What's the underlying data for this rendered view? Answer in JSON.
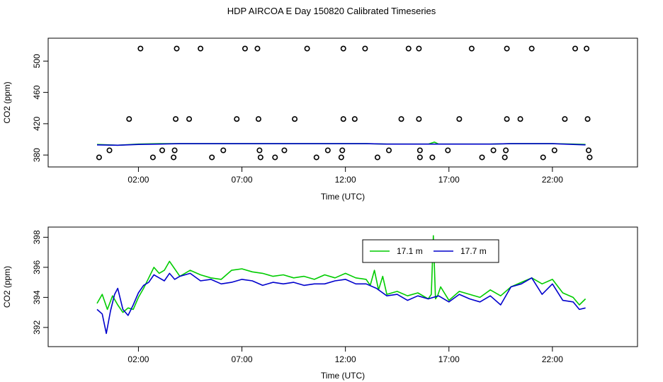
{
  "title": "HDP AIRCOA E  Day 150820  Calibrated Timeseries",
  "colors": {
    "green": "#00cc00",
    "blue": "#0000cc",
    "axis": "#000000"
  },
  "chart_data": [
    {
      "type": "scatter",
      "xlabel": "Time (UTC)",
      "ylabel": "CO2 (ppm)",
      "xlim": [
        -1.95,
        25.7
      ],
      "ylim": [
        372,
        522
      ],
      "x_ticks": [
        2,
        7,
        12,
        17,
        22
      ],
      "x_tick_labels": [
        "02:00",
        "07:00",
        "12:00",
        "17:00",
        "22:00"
      ],
      "y_ticks": [
        380,
        420,
        460,
        500
      ],
      "y_tick_labels": [
        "380",
        "420",
        "460",
        "500"
      ],
      "series": [
        {
          "marker": "open-circle",
          "color": "#000000",
          "points": [
            [
              2.1,
              516
            ],
            [
              3.85,
              516
            ],
            [
              5,
              516
            ],
            [
              7.15,
              516
            ],
            [
              7.75,
              516
            ],
            [
              10.15,
              516
            ],
            [
              11.9,
              516
            ],
            [
              12.95,
              516
            ],
            [
              15.05,
              516
            ],
            [
              15.55,
              516
            ],
            [
              18.1,
              516
            ],
            [
              19.8,
              516
            ],
            [
              21,
              516
            ],
            [
              23.1,
              516
            ],
            [
              23.65,
              516
            ],
            [
              1.55,
              426
            ],
            [
              3.8,
              426
            ],
            [
              4.45,
              426
            ],
            [
              6.75,
              426
            ],
            [
              7.8,
              426
            ],
            [
              9.55,
              426
            ],
            [
              11.9,
              426
            ],
            [
              12.45,
              426
            ],
            [
              14.7,
              426
            ],
            [
              15.55,
              426
            ],
            [
              17.5,
              426
            ],
            [
              19.8,
              426
            ],
            [
              20.45,
              426
            ],
            [
              22.6,
              426
            ],
            [
              23.7,
              426
            ],
            [
              0.1,
              377
            ],
            [
              0.6,
              386
            ],
            [
              2.7,
              377
            ],
            [
              3.15,
              386
            ],
            [
              3.7,
              377
            ],
            [
              3.75,
              386
            ],
            [
              5.55,
              377
            ],
            [
              6.1,
              386
            ],
            [
              7.85,
              386
            ],
            [
              7.9,
              377
            ],
            [
              8.6,
              377
            ],
            [
              9.05,
              386
            ],
            [
              10.6,
              377
            ],
            [
              11.15,
              386
            ],
            [
              11.8,
              377
            ],
            [
              11.85,
              386
            ],
            [
              13.55,
              377
            ],
            [
              14.1,
              386
            ],
            [
              15.6,
              377
            ],
            [
              15.6,
              386
            ],
            [
              16.2,
              377
            ],
            [
              16.95,
              386
            ],
            [
              18.6,
              377
            ],
            [
              19.15,
              386
            ],
            [
              19.7,
              377
            ],
            [
              19.75,
              386
            ],
            [
              21.55,
              377
            ],
            [
              22.1,
              386
            ],
            [
              23.8,
              377
            ],
            [
              23.75,
              386
            ]
          ]
        },
        {
          "marker": "line",
          "color": "#00cc00",
          "x": [
            0,
            1,
            2,
            3,
            4,
            5,
            6,
            7,
            8,
            9,
            10,
            11,
            12,
            13,
            14,
            15,
            16,
            16.3,
            16.5,
            17,
            18,
            19,
            20,
            21,
            22,
            23,
            23.6
          ],
          "y": [
            393.5,
            392.5,
            394,
            394.5,
            394.5,
            394.5,
            394.5,
            394.5,
            394.5,
            394.5,
            394.5,
            394.5,
            394.5,
            394.5,
            394,
            394,
            394,
            396.5,
            394,
            394,
            394,
            394,
            394.5,
            394.5,
            394.5,
            394,
            393.5
          ]
        },
        {
          "marker": "line",
          "color": "#0000cc",
          "x": [
            0,
            1,
            2,
            3,
            4,
            5,
            6,
            7,
            8,
            9,
            10,
            11,
            12,
            13,
            14,
            15,
            16,
            17,
            18,
            19,
            20,
            21,
            22,
            23,
            23.6
          ],
          "y": [
            393,
            392.5,
            393.5,
            394,
            394.5,
            394.5,
            394.5,
            394.5,
            394.5,
            394.5,
            394.5,
            394.5,
            394.5,
            394.5,
            394,
            394,
            394,
            394,
            394,
            394,
            394.5,
            394.5,
            394.5,
            393.5,
            393
          ]
        }
      ]
    },
    {
      "type": "line",
      "xlabel": "Time (UTC)",
      "ylabel": "CO2 (ppm)",
      "xlim": [
        -1.95,
        25.7
      ],
      "ylim": [
        391.1,
        398.3
      ],
      "x_ticks": [
        2,
        7,
        12,
        17,
        22
      ],
      "x_tick_labels": [
        "02:00",
        "07:00",
        "12:00",
        "17:00",
        "22:00"
      ],
      "y_ticks": [
        392,
        394,
        396,
        398
      ],
      "y_tick_labels": [
        "392",
        "394",
        "396",
        "398"
      ],
      "legend": {
        "position": "top-right",
        "entries": [
          "17.1 m",
          "17.7 m"
        ]
      },
      "series": [
        {
          "name": "17.1 m",
          "color": "#00cc00",
          "x": [
            0,
            0.25,
            0.5,
            0.75,
            1,
            1.25,
            1.5,
            1.75,
            2,
            2.25,
            2.5,
            2.75,
            3,
            3.25,
            3.5,
            3.75,
            4,
            4.5,
            5,
            5.5,
            6,
            6.5,
            7,
            7.5,
            8,
            8.5,
            9,
            9.5,
            10,
            10.5,
            11,
            11.5,
            12,
            12.5,
            13,
            13.2,
            13.4,
            13.6,
            13.8,
            14,
            14.5,
            15,
            15.5,
            16,
            16.15,
            16.25,
            16.35,
            16.45,
            16.6,
            17,
            17.5,
            18,
            18.5,
            19,
            19.5,
            20,
            20.5,
            21,
            21.5,
            22,
            22.5,
            23,
            23.3,
            23.6
          ],
          "y": [
            393.6,
            394.2,
            393.2,
            394.1,
            393.5,
            393,
            393.3,
            393.2,
            394,
            394.6,
            395.3,
            396,
            395.6,
            395.8,
            396.4,
            395.9,
            395.4,
            395.8,
            395.5,
            395.3,
            395.2,
            395.8,
            395.9,
            395.7,
            395.6,
            395.4,
            395.5,
            395.3,
            395.4,
            395.2,
            395.5,
            395.3,
            395.6,
            395.3,
            395.2,
            394.8,
            395.8,
            394.5,
            395.4,
            394.2,
            394.4,
            394.1,
            394.3,
            393.9,
            394.2,
            398.1,
            393.9,
            394.1,
            394.7,
            393.8,
            394.4,
            394.2,
            394,
            394.5,
            394.1,
            394.7,
            395,
            395.3,
            394.9,
            395.2,
            394.3,
            394,
            393.5,
            393.9
          ]
        },
        {
          "name": "17.7 m",
          "color": "#0000cc",
          "x": [
            0,
            0.25,
            0.45,
            0.65,
            0.85,
            1,
            1.25,
            1.5,
            1.75,
            2,
            2.25,
            2.5,
            2.75,
            3,
            3.25,
            3.5,
            3.75,
            4,
            4.5,
            5,
            5.5,
            6,
            6.5,
            7,
            7.5,
            8,
            8.5,
            9,
            9.5,
            10,
            10.5,
            11,
            11.5,
            12,
            12.5,
            13,
            13.5,
            14,
            14.5,
            15,
            15.5,
            16,
            16.5,
            17,
            17.5,
            18,
            18.5,
            19,
            19.5,
            20,
            20.5,
            21,
            21.5,
            22,
            22.5,
            23,
            23.3,
            23.6
          ],
          "y": [
            393.2,
            392.9,
            391.6,
            393.1,
            394.2,
            394.6,
            393.2,
            392.8,
            393.5,
            394.3,
            394.8,
            395,
            395.5,
            395.3,
            395.1,
            395.6,
            395.2,
            395.4,
            395.6,
            395.1,
            395.2,
            394.9,
            395,
            395.2,
            395.1,
            394.8,
            395,
            394.9,
            395,
            394.8,
            394.9,
            394.9,
            395.1,
            395.2,
            394.9,
            394.9,
            394.6,
            394.1,
            394.2,
            393.8,
            394.1,
            393.9,
            394.1,
            393.7,
            394.2,
            393.9,
            393.7,
            394.1,
            393.5,
            394.7,
            394.9,
            395.3,
            394.2,
            394.9,
            393.8,
            393.7,
            393.2,
            393.3
          ]
        }
      ]
    }
  ]
}
